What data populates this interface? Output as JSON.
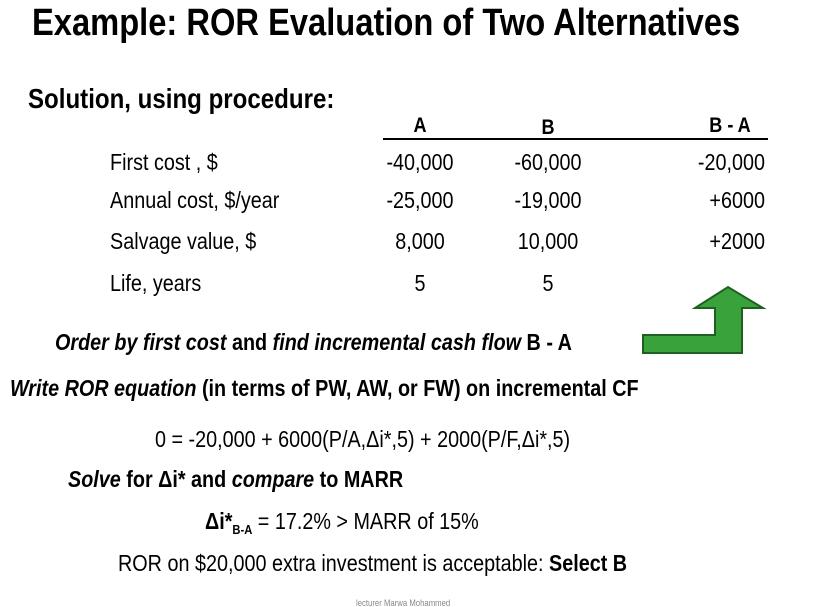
{
  "title": "Example: ROR Evaluation of Two Alternatives",
  "subtitle": "Solution, using procedure:",
  "table": {
    "headers": [
      "A",
      "B",
      "B - A"
    ],
    "rows": [
      [
        "First cost , $",
        "-40,000",
        "-60,000",
        "-20,000"
      ],
      [
        "Annual cost, $/year",
        "-25,000",
        "-19,000",
        "+6000"
      ],
      [
        "Salvage value, $",
        "8,000",
        "10,000",
        "+2000"
      ],
      [
        "Life, years",
        "5",
        "5",
        null
      ]
    ]
  },
  "steps": [
    [
      "Order by first cost",
      "and",
      "find incremental cash flow",
      "B - A"
    ],
    [
      "Write ROR equation",
      "(in terms of PW, AW, or FW) on incremental CF"
    ],
    [
      "0 = -20,000 + 6000(P/A,Δi*,5) + 2000(P/F,Δi*,5)"
    ],
    [
      "Solve",
      "for Δi* and",
      "compare",
      "to MARR"
    ],
    [
      "Δi*",
      "B-A",
      "= 17.2% > MARR of 15%"
    ],
    [
      "ROR on $20,000 extra investment is acceptable:",
      "Select B"
    ]
  ],
  "footer": "lecturer Marwa Mohammed"
}
